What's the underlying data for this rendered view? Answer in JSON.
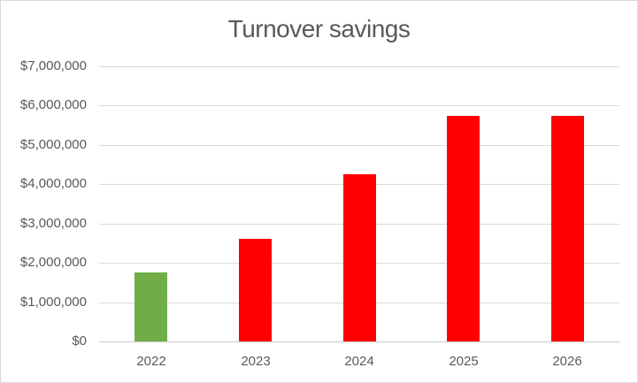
{
  "chart_data": {
    "type": "bar",
    "title": "Turnover savings",
    "categories": [
      "2022",
      "2023",
      "2024",
      "2025",
      "2026"
    ],
    "values": [
      1750000,
      2600000,
      4250000,
      5750000,
      5750000
    ],
    "bar_colors": [
      "#70AD47",
      "#FF0000",
      "#FF0000",
      "#FF0000",
      "#FF0000"
    ],
    "y_tick_labels": [
      "$7,000,000",
      "$6,000,000",
      "$5,000,000",
      "$4,000,000",
      "$3,000,000",
      "$2,000,000",
      "$1,000,000",
      "$0"
    ],
    "y_tick_values": [
      7000000,
      6000000,
      5000000,
      4000000,
      3000000,
      2000000,
      1000000,
      0
    ],
    "ylim": [
      0,
      7000000
    ],
    "xlabel": "",
    "ylabel": "",
    "grid": true,
    "legend_position": "none",
    "colors": {
      "bar_2022": "#70AD47",
      "bar_other_years": "#FF0000",
      "gridline": "#D9D9D9",
      "axis_line": "#C9C9C9",
      "text": "#595959",
      "chart_border": "#D9D9D9",
      "background": "#FFFFFF"
    }
  }
}
